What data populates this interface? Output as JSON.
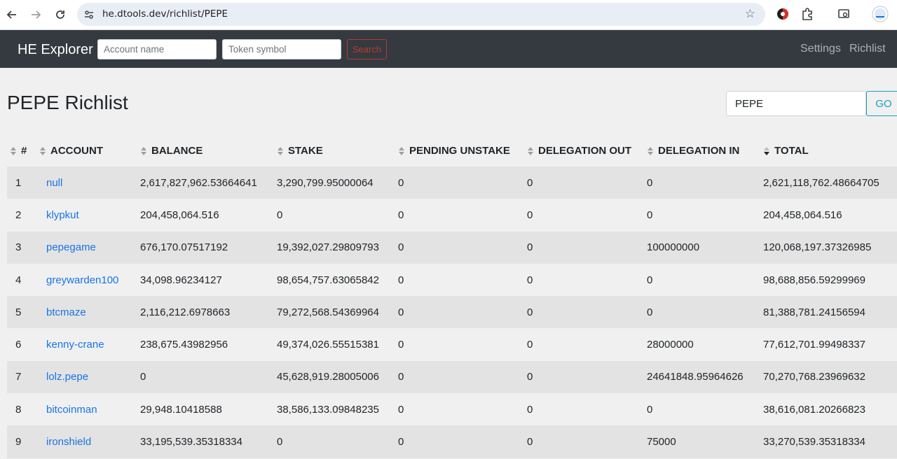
{
  "browser": {
    "url": "he.dtools.dev/richlist/PEPE"
  },
  "navbar": {
    "brand": "HE Explorer",
    "account_placeholder": "Account name",
    "token_placeholder": "Token symbol",
    "search_label": "Search",
    "links": [
      "Settings",
      "Richlist"
    ]
  },
  "page": {
    "title": "PEPE Richlist",
    "token_value": "PEPE",
    "go_label": "GO"
  },
  "colors": {
    "navbar_bg": "#343a40",
    "link": "#1a73e8",
    "search_btn": "#c0392b",
    "go_btn": "#17a2b8"
  },
  "table": {
    "headers": [
      "#",
      "ACCOUNT",
      "BALANCE",
      "STAKE",
      "PENDING UNSTAKE",
      "DELEGATION OUT",
      "DELEGATION IN",
      "TOTAL"
    ],
    "sorted_column": "TOTAL",
    "rows": [
      [
        "1",
        "null",
        "2,617,827,962.53664641",
        "3,290,799.95000064",
        "0",
        "0",
        "0",
        "2,621,118,762.48664705"
      ],
      [
        "2",
        "klypkut",
        "204,458,064.516",
        "0",
        "0",
        "0",
        "0",
        "204,458,064.516"
      ],
      [
        "3",
        "pepegame",
        "676,170.07517192",
        "19,392,027.29809793",
        "0",
        "0",
        "100000000",
        "120,068,197.37326985"
      ],
      [
        "4",
        "greywarden100",
        "34,098.96234127",
        "98,654,757.63065842",
        "0",
        "0",
        "0",
        "98,688,856.59299969"
      ],
      [
        "5",
        "btcmaze",
        "2,116,212.6978663",
        "79,272,568.54369964",
        "0",
        "0",
        "0",
        "81,388,781.24156594"
      ],
      [
        "6",
        "kenny-crane",
        "238,675.43982956",
        "49,374,026.55515381",
        "0",
        "0",
        "28000000",
        "77,612,701.99498337"
      ],
      [
        "7",
        "lolz.pepe",
        "0",
        "45,628,919.28005006",
        "0",
        "0",
        "24641848.95964626",
        "70,270,768.23969632"
      ],
      [
        "8",
        "bitcoinman",
        "29,948.10418588",
        "38,586,133.09848235",
        "0",
        "0",
        "0",
        "38,616,081.20266823"
      ],
      [
        "9",
        "ironshield",
        "33,195,539.35318334",
        "0",
        "0",
        "0",
        "75000",
        "33,270,539.35318334"
      ]
    ]
  }
}
